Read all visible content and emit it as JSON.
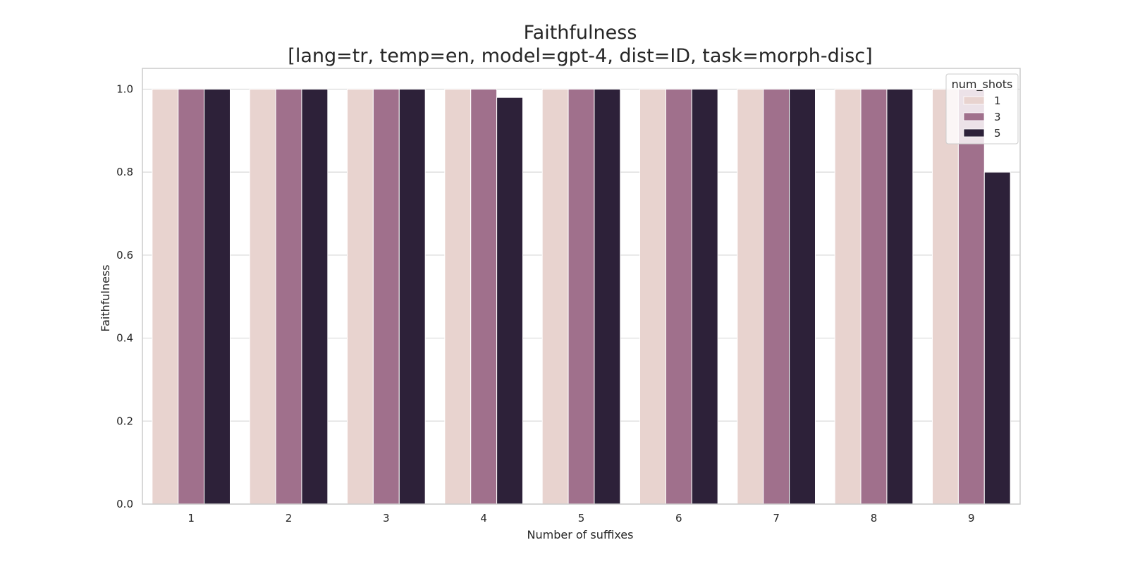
{
  "chart_data": {
    "type": "bar",
    "title": "Faithfulness",
    "subtitle": "[lang=tr, temp=en, model=gpt-4, dist=ID, task=morph-disc]",
    "xlabel": "Number of suffixes",
    "ylabel": "Faithfulness",
    "categories": [
      "1",
      "2",
      "3",
      "4",
      "5",
      "6",
      "7",
      "8",
      "9"
    ],
    "ylim": [
      0,
      1.05
    ],
    "yticks": [
      "0.0",
      "0.2",
      "0.4",
      "0.6",
      "0.8",
      "1.0"
    ],
    "grid": true,
    "legend": {
      "title": "num_shots",
      "placement": "top-right"
    },
    "series": [
      {
        "name": "1",
        "color": "#e8d3cf",
        "values": [
          1.0,
          1.0,
          1.0,
          1.0,
          1.0,
          1.0,
          1.0,
          1.0,
          1.0
        ]
      },
      {
        "name": "3",
        "color": "#a0708c",
        "values": [
          1.0,
          1.0,
          1.0,
          1.0,
          1.0,
          1.0,
          1.0,
          1.0,
          1.0
        ]
      },
      {
        "name": "5",
        "color": "#2d2139",
        "values": [
          1.0,
          1.0,
          1.0,
          0.98,
          1.0,
          1.0,
          1.0,
          1.0,
          0.8
        ]
      }
    ]
  }
}
